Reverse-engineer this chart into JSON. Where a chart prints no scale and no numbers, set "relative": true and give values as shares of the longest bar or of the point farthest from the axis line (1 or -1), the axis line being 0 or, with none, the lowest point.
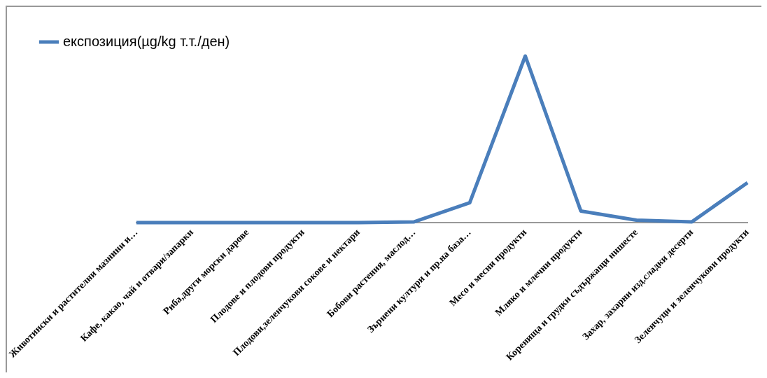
{
  "chart_data": {
    "type": "line",
    "relative": true,
    "legend": "top left",
    "grid": false,
    "marker": "none",
    "line_style": "solid",
    "categories": [
      "Животински и растителни мазнини и…",
      "Кафе, какао, чай и отвари/запарки",
      "Риба,други морски дарове",
      "Плодове и плодови продукти",
      "Плодови,зеленчукови сокове и нектари",
      "Бобови растения, маслод…",
      "Зърнени култури и пр.на база…",
      "Месо и месни продукти",
      "Мляко и млечни продукти",
      "Коренища и грудки съдържащи нишесте",
      "Захар, захарни изд.сладки десерти",
      "Зеленчуци и зеленчукови продукти"
    ],
    "series": [
      {
        "name": "експозиция(µg/kg т.т./ден)",
        "color": "#4a7ebb",
        "values": [
          0,
          0,
          0,
          0,
          0,
          0.005,
          0.12,
          1,
          0.07,
          0.015,
          0.005,
          0.24
        ]
      }
    ]
  }
}
